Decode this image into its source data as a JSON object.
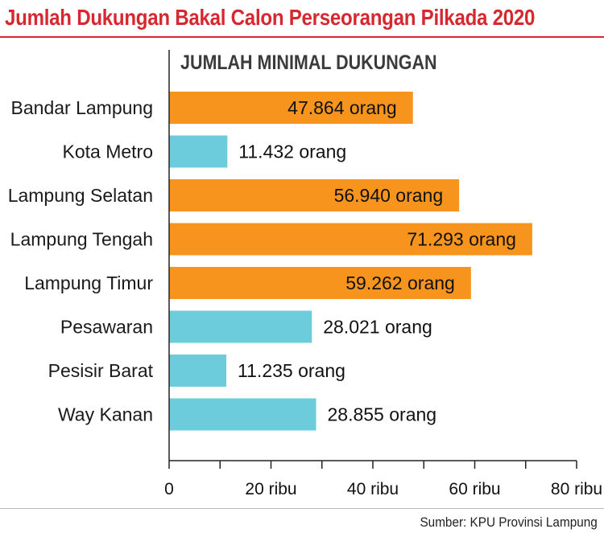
{
  "header": {
    "title": "Jumlah Dukungan Bakal Calon Perseorangan Pilkada 2020",
    "subtitle": "JUMLAH MINIMAL DUKUNGAN"
  },
  "footer": {
    "source": "Sumber: KPU Provinsi Lampung"
  },
  "colors": {
    "title": "#d7282f",
    "bar_orange": "#f7941d",
    "bar_cyan": "#6dccdc",
    "axis": "#222222"
  },
  "chart_data": {
    "type": "bar",
    "orientation": "horizontal",
    "categories": [
      "Bandar Lampung",
      "Kota Metro",
      "Lampung Selatan",
      "Lampung Tengah",
      "Lampung Timur",
      "Pesawaran",
      "Pesisir Barat",
      "Way Kanan"
    ],
    "values": [
      47864,
      11432,
      56940,
      71293,
      59262,
      28021,
      11235,
      28855
    ],
    "value_labels": [
      "47.864 orang",
      "11.432 orang",
      "56.940 orang",
      "71.293 orang",
      "59.262 orang",
      "28.021 orang",
      "11.235 orang",
      "28.855 orang"
    ],
    "bar_colors": [
      "orange",
      "cyan",
      "orange",
      "orange",
      "orange",
      "cyan",
      "cyan",
      "cyan"
    ],
    "xlim": [
      0,
      80000
    ],
    "major_ticks": [
      0,
      20000,
      40000,
      60000,
      80000
    ],
    "tick_labels": [
      "0",
      "20 ribu",
      "40 ribu",
      "60 ribu",
      "80 ribu"
    ],
    "minor_tick_step": 10000,
    "grid": false
  }
}
